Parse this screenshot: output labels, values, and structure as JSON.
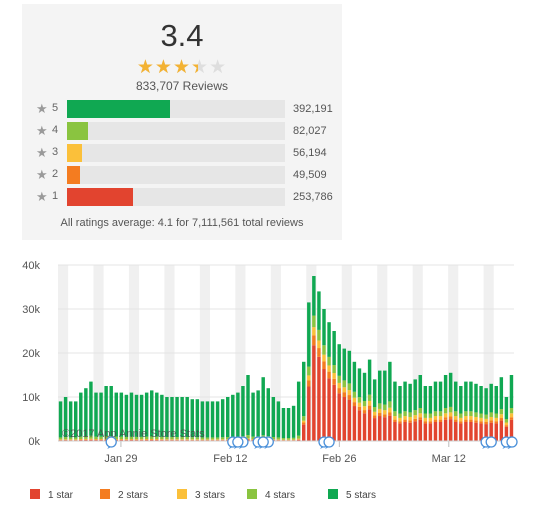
{
  "summary": {
    "average_rating": "3.4",
    "stars_value": 3.4,
    "reviews_label": "833,707 Reviews",
    "rows": [
      {
        "stars": "5",
        "count": "392,191",
        "fraction": 0.4704,
        "color": "#10a852"
      },
      {
        "stars": "4",
        "count": "82,027",
        "fraction": 0.0984,
        "color": "#8ac440"
      },
      {
        "stars": "3",
        "count": "56,194",
        "fraction": 0.0674,
        "color": "#fbc03a"
      },
      {
        "stars": "2",
        "count": "49,509",
        "fraction": 0.0594,
        "color": "#f47c20"
      },
      {
        "stars": "1",
        "count": "253,786",
        "fraction": 0.3044,
        "color": "#e2442f"
      }
    ],
    "all_ratings_text": "All ratings average: 4.1 for 7,111,561 total reviews",
    "star_icon": "star-icon"
  },
  "chart_data": {
    "type": "bar",
    "stacked": true,
    "xlabel": "",
    "ylabel": "",
    "ylim": [
      0,
      40000
    ],
    "y_ticks": [
      "0k",
      "10k",
      "20k",
      "30k",
      "40k"
    ],
    "x_tick_labels": [
      "Jan 29",
      "Feb 12",
      "Feb 26",
      "Mar 12"
    ],
    "watermark": "©2017 App Annie Store Stats",
    "grid": true,
    "legend_position": "bottom",
    "series": [
      {
        "name": "1 star",
        "color": "#e2442f"
      },
      {
        "name": "2 stars",
        "color": "#f47c20"
      },
      {
        "name": "3 stars",
        "color": "#fbc03a"
      },
      {
        "name": "4 stars",
        "color": "#8ac440"
      },
      {
        "name": "5 stars",
        "color": "#10a852"
      }
    ],
    "day_totals": [
      9000,
      10000,
      9000,
      9000,
      11000,
      12000,
      13500,
      11000,
      11000,
      12500,
      12500,
      11000,
      11000,
      10500,
      11000,
      10500,
      10500,
      11000,
      11500,
      11000,
      10500,
      10000,
      10000,
      10000,
      10000,
      10000,
      9500,
      9500,
      9000,
      9000,
      9000,
      9000,
      9500,
      10000,
      10500,
      11000,
      12500,
      15000,
      11000,
      11500,
      14500,
      12000,
      10000,
      9000,
      7500,
      7500,
      8000,
      13500,
      18000,
      31500,
      37500,
      34000,
      30000,
      27000,
      25000,
      22000,
      21000,
      20500,
      18000,
      16500,
      15500,
      18500,
      14000,
      16000,
      16000,
      18000,
      13500,
      12500,
      13500,
      13000,
      14000,
      15000,
      12500,
      12500,
      13500,
      13500,
      15000,
      15500,
      13500,
      12500,
      13500,
      13500,
      13000,
      12500,
      12000,
      13000,
      12500,
      14500,
      10000,
      15000
    ],
    "day_shares": {
      "start": [
        0.02,
        0.01,
        0.01,
        0.05,
        0.91
      ],
      "peak": [
        0.58,
        0.06,
        0.05,
        0.07,
        0.24
      ],
      "late": [
        0.32,
        0.04,
        0.06,
        0.08,
        0.5
      ]
    },
    "review_markers_count": 14
  }
}
